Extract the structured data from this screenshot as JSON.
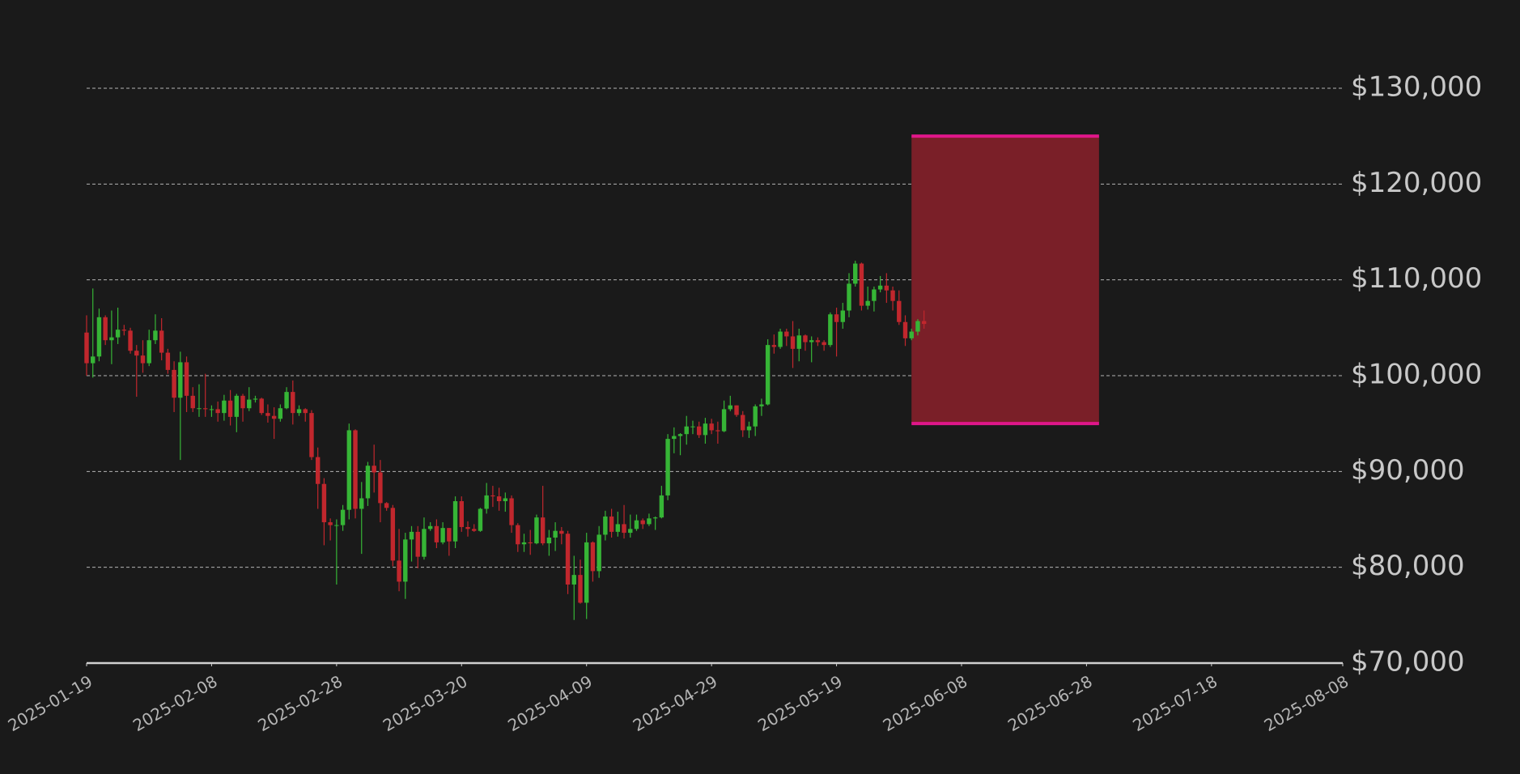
{
  "chart_data": {
    "type": "candlestick",
    "x": [
      "2025-01-19",
      "2025-01-20",
      "2025-01-21",
      "2025-01-22",
      "2025-01-23",
      "2025-01-24",
      "2025-01-25",
      "2025-01-26",
      "2025-01-27",
      "2025-01-28",
      "2025-01-29",
      "2025-01-30",
      "2025-01-31",
      "2025-02-01",
      "2025-02-02",
      "2025-02-03",
      "2025-02-04",
      "2025-02-05",
      "2025-02-06",
      "2025-02-07",
      "2025-02-08",
      "2025-02-09",
      "2025-02-10",
      "2025-02-11",
      "2025-02-12",
      "2025-02-13",
      "2025-02-14",
      "2025-02-15",
      "2025-02-16",
      "2025-02-17",
      "2025-02-18",
      "2025-02-19",
      "2025-02-20",
      "2025-02-21",
      "2025-02-22",
      "2025-02-23",
      "2025-02-24",
      "2025-02-25",
      "2025-02-26",
      "2025-02-27",
      "2025-02-28",
      "2025-03-01",
      "2025-03-02",
      "2025-03-03",
      "2025-03-04",
      "2025-03-05",
      "2025-03-06",
      "2025-03-07",
      "2025-03-08",
      "2025-03-09",
      "2025-03-10",
      "2025-03-11",
      "2025-03-12",
      "2025-03-13",
      "2025-03-14",
      "2025-03-15",
      "2025-03-16",
      "2025-03-17",
      "2025-03-18",
      "2025-03-19",
      "2025-03-20",
      "2025-03-21",
      "2025-03-22",
      "2025-03-23",
      "2025-03-24",
      "2025-03-25",
      "2025-03-26",
      "2025-03-27",
      "2025-03-28",
      "2025-03-29",
      "2025-03-30",
      "2025-03-31",
      "2025-04-01",
      "2025-04-02",
      "2025-04-03",
      "2025-04-04",
      "2025-04-05",
      "2025-04-06",
      "2025-04-07",
      "2025-04-08",
      "2025-04-09",
      "2025-04-10",
      "2025-04-11",
      "2025-04-12",
      "2025-04-13",
      "2025-04-14",
      "2025-04-15",
      "2025-04-16",
      "2025-04-17",
      "2025-04-18",
      "2025-04-19",
      "2025-04-20",
      "2025-04-21",
      "2025-04-22",
      "2025-04-23",
      "2025-04-24",
      "2025-04-25",
      "2025-04-26",
      "2025-04-27",
      "2025-04-28",
      "2025-04-29",
      "2025-04-30",
      "2025-05-01",
      "2025-05-02",
      "2025-05-03",
      "2025-05-04",
      "2025-05-05",
      "2025-05-06",
      "2025-05-07",
      "2025-05-08",
      "2025-05-09",
      "2025-05-10",
      "2025-05-11",
      "2025-05-12",
      "2025-05-13",
      "2025-05-14",
      "2025-05-15",
      "2025-05-16",
      "2025-05-17",
      "2025-05-18",
      "2025-05-19",
      "2025-05-20",
      "2025-05-21",
      "2025-05-22",
      "2025-05-23",
      "2025-05-24",
      "2025-05-25",
      "2025-05-26",
      "2025-05-27",
      "2025-05-28",
      "2025-05-29",
      "2025-05-30",
      "2025-05-31",
      "2025-06-01",
      "2025-06-02"
    ],
    "open": [
      104500,
      101300,
      102000,
      106100,
      103700,
      104000,
      104800,
      104700,
      102600,
      102100,
      101300,
      103700,
      104700,
      102400,
      100600,
      97700,
      101400,
      97900,
      96600,
      96600,
      96500,
      96500,
      96100,
      97400,
      95700,
      97900,
      96600,
      97500,
      97600,
      96100,
      95800,
      95500,
      96600,
      98300,
      96100,
      96500,
      96100,
      91500,
      88700,
      84700,
      84400,
      84400,
      86000,
      94300,
      86100,
      87200,
      90600,
      89900,
      86700,
      86200,
      80700,
      78500,
      82900,
      83700,
      81100,
      84000,
      84300,
      82600,
      84100,
      82700,
      86900,
      84200,
      84000,
      83800,
      86100,
      87500,
      87400,
      86900,
      87200,
      84400,
      82400,
      82600,
      82500,
      85200,
      82500,
      83100,
      83800,
      83500,
      78200,
      79200,
      76300,
      82600,
      79600,
      83400,
      85300,
      83700,
      84500,
      83600,
      84000,
      84900,
      84500,
      85100,
      85200,
      87500,
      93400,
      93700,
      93900,
      94700,
      94700,
      93800,
      95000,
      94300,
      94200,
      96500,
      96900,
      95900,
      94300,
      94700,
      96800,
      97000,
      103200,
      103000,
      104600,
      104100,
      102800,
      104200,
      103500,
      103700,
      103500,
      103200,
      106400,
      105600,
      106800,
      109600,
      111700,
      107300,
      107800,
      109000,
      109400,
      108900,
      107800,
      105600,
      103900,
      104600,
      105700
    ],
    "high": [
      106300,
      109100,
      107000,
      106300,
      106800,
      107100,
      105300,
      105000,
      103200,
      103700,
      104800,
      106400,
      106000,
      102800,
      101500,
      102500,
      102000,
      98800,
      99100,
      100200,
      96900,
      97300,
      98000,
      98500,
      98100,
      98100,
      98800,
      97900,
      97700,
      97000,
      96700,
      97000,
      98800,
      99500,
      96900,
      96600,
      96400,
      92500,
      89300,
      85100,
      85000,
      86500,
      95000,
      94400,
      88900,
      91000,
      92800,
      91200,
      86800,
      86500,
      84000,
      83600,
      84300,
      84300,
      85200,
      84700,
      85000,
      84700,
      84100,
      87400,
      87400,
      84800,
      84500,
      86200,
      88800,
      88500,
      88300,
      87800,
      87500,
      84600,
      83500,
      83900,
      85500,
      88500,
      83900,
      84700,
      84200,
      83800,
      81200,
      80800,
      83600,
      82700,
      84300,
      85900,
      86100,
      85800,
      86500,
      85500,
      85500,
      85100,
      85600,
      85300,
      88500,
      93900,
      94600,
      94000,
      95800,
      95300,
      95200,
      95600,
      95500,
      95200,
      97400,
      97900,
      96900,
      96300,
      95200,
      97000,
      97600,
      103800,
      104300,
      104900,
      104900,
      105700,
      104900,
      104300,
      104100,
      104000,
      103700,
      106600,
      107100,
      107600,
      110700,
      112000,
      111800,
      109300,
      109300,
      110400,
      110700,
      109300,
      108900,
      106300,
      104900,
      105900,
      106800
    ],
    "low": [
      100000,
      99800,
      101500,
      103200,
      101200,
      103300,
      104200,
      102300,
      97800,
      100300,
      101000,
      103300,
      101600,
      100200,
      96200,
      91200,
      96200,
      96200,
      95700,
      95700,
      95700,
      95200,
      95300,
      94800,
      94100,
      95200,
      96300,
      97200,
      95900,
      95100,
      93400,
      95200,
      96500,
      94900,
      95800,
      95200,
      91200,
      86100,
      82300,
      82800,
      78200,
      83800,
      85000,
      85100,
      81400,
      86400,
      87800,
      84700,
      85900,
      80100,
      77500,
      76700,
      80600,
      79900,
      80800,
      83800,
      82000,
      82400,
      81200,
      82000,
      83700,
      83200,
      83700,
      83700,
      85600,
      86300,
      85900,
      85800,
      83600,
      81600,
      81600,
      81300,
      82400,
      82300,
      81200,
      81700,
      82400,
      77200,
      74500,
      76200,
      74600,
      78500,
      78900,
      82800,
      83100,
      83200,
      83000,
      83100,
      83800,
      84000,
      84300,
      83900,
      85100,
      87000,
      91900,
      91700,
      92800,
      93900,
      93500,
      92900,
      93900,
      92900,
      94100,
      96300,
      95700,
      93600,
      93500,
      93700,
      95800,
      96900,
      102300,
      102800,
      103100,
      100800,
      101500,
      102600,
      101400,
      103100,
      102600,
      103000,
      102000,
      104900,
      106100,
      109300,
      106800,
      106900,
      106700,
      108700,
      107600,
      106800,
      105300,
      103100,
      103700,
      104200,
      104900
    ],
    "close": [
      101300,
      102000,
      106100,
      103700,
      104000,
      104800,
      104700,
      102600,
      102100,
      101300,
      103700,
      104700,
      102400,
      100600,
      97700,
      101400,
      97900,
      96600,
      96600,
      96500,
      96500,
      96100,
      97400,
      95700,
      97900,
      96600,
      97500,
      97600,
      96100,
      95800,
      95500,
      96600,
      98300,
      96100,
      96500,
      96100,
      91500,
      88700,
      84700,
      84400,
      84400,
      86000,
      94300,
      86100,
      87200,
      90600,
      89900,
      86700,
      86200,
      80700,
      78500,
      82900,
      83700,
      81100,
      84000,
      84300,
      82600,
      84100,
      82700,
      86900,
      84200,
      84000,
      83800,
      86100,
      87500,
      87400,
      86900,
      87200,
      84400,
      82400,
      82600,
      82500,
      85200,
      82500,
      83100,
      83800,
      83500,
      78200,
      79200,
      76300,
      82600,
      79600,
      83400,
      85300,
      83700,
      84500,
      83600,
      84000,
      84900,
      84500,
      85100,
      85200,
      87500,
      93400,
      93700,
      93900,
      94700,
      94700,
      93800,
      95000,
      94300,
      94200,
      96500,
      96900,
      95900,
      94300,
      94700,
      96800,
      97000,
      103200,
      103000,
      104600,
      104100,
      102800,
      104200,
      103500,
      103700,
      103500,
      103200,
      106400,
      105600,
      106800,
      109600,
      111700,
      107300,
      107800,
      109000,
      109400,
      108900,
      107800,
      105600,
      103900,
      104600,
      105700,
      105400
    ],
    "up_color": "#36b536",
    "down_color": "#c1272d",
    "band": {
      "x": [
        "2025-05-31",
        "2025-06-30"
      ],
      "low": 95000,
      "high": 125000,
      "color": "#7a1f28",
      "edge_color": "#e0168a"
    },
    "xlim": [
      "2025-01-19",
      "2025-08-08"
    ],
    "xticks": [
      "2025-01-19",
      "2025-02-08",
      "2025-02-28",
      "2025-03-20",
      "2025-04-09",
      "2025-04-29",
      "2025-05-19",
      "2025-06-08",
      "2025-06-28",
      "2025-07-18",
      "2025-08-08"
    ],
    "ylim": [
      70000,
      130000
    ],
    "yticks": [
      {
        "value": 70000,
        "label": "$70,000"
      },
      {
        "value": 80000,
        "label": "$80,000"
      },
      {
        "value": 90000,
        "label": "$90,000"
      },
      {
        "value": 100000,
        "label": "$100,000"
      },
      {
        "value": 110000,
        "label": "$110,000"
      },
      {
        "value": 120000,
        "label": "$120,000"
      },
      {
        "value": 130000,
        "label": "$130,000"
      }
    ],
    "grid": true
  }
}
